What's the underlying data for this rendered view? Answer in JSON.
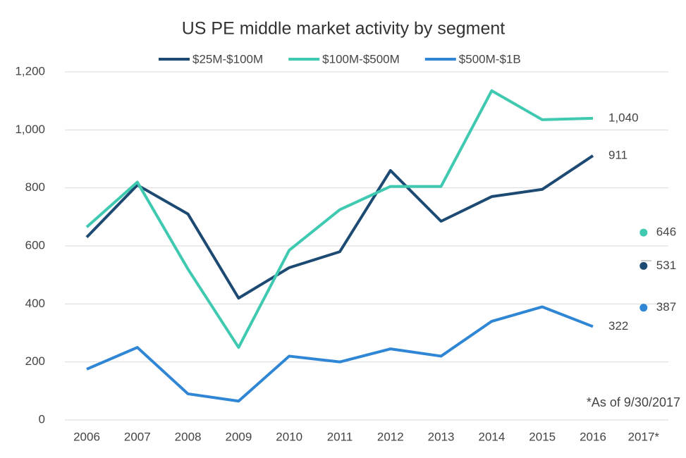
{
  "chart_data": {
    "type": "line",
    "title": "US PE middle market activity by segment",
    "categories": [
      "2006",
      "2007",
      "2008",
      "2009",
      "2010",
      "2011",
      "2012",
      "2013",
      "2014",
      "2015",
      "2016"
    ],
    "ytd_category": "2017*",
    "series": [
      {
        "name": "$25M-$100M",
        "color": "#1d4a73",
        "values": [
          630,
          810,
          710,
          420,
          525,
          580,
          860,
          685,
          770,
          795,
          911
        ],
        "ytd_value": 531
      },
      {
        "name": "$100M-$500M",
        "color": "#3ec9b0",
        "values": [
          665,
          820,
          520,
          250,
          585,
          725,
          805,
          805,
          1135,
          1035,
          1040
        ],
        "end_label": "1,040",
        "ytd_value": 646
      },
      {
        "name": "$500M-$1B",
        "color": "#2e86d4",
        "values": [
          175,
          250,
          90,
          65,
          220,
          200,
          245,
          220,
          340,
          390,
          322
        ],
        "ytd_value": 387
      }
    ],
    "ylim": [
      0,
      1200
    ],
    "yticks": [
      0,
      200,
      400,
      600,
      800,
      {
        "value": 1000,
        "label": "1,000"
      },
      {
        "value": 1200,
        "label": "1,200"
      }
    ],
    "grid": true,
    "annotation": "*As of 9/30/2017"
  }
}
